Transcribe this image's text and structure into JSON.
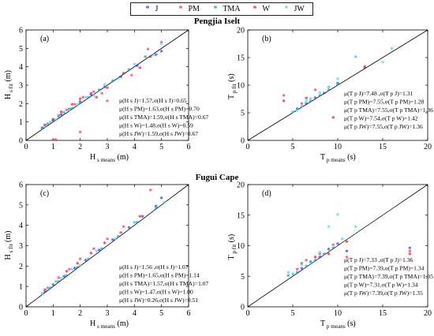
{
  "legend": {
    "items": [
      {
        "label": "J",
        "color": "#3b4fd8",
        "marker": "*"
      },
      {
        "label": "PM",
        "color": "#e8408a",
        "marker": "*"
      },
      {
        "label": "TMA",
        "color": "#1fa7a7",
        "marker": "*"
      },
      {
        "label": "W",
        "color": "#d6333a",
        "marker": "*"
      },
      {
        "label": "JW",
        "color": "#5fd3f0",
        "marker": "*"
      }
    ]
  },
  "section_titles": [
    "Pengjia Iselt",
    "Fugui Cape"
  ],
  "chart_data": [
    {
      "type": "scatter",
      "panel": "(a)",
      "xlabel": "H s means (m)",
      "ylabel": "H s fit (m)",
      "xlim": [
        0,
        6
      ],
      "ylim": [
        0,
        6
      ],
      "xticks": [
        0,
        1,
        2,
        3,
        4,
        5,
        6
      ],
      "yticks": [
        0,
        1,
        2,
        3,
        4,
        5,
        6
      ],
      "diagonal": true,
      "series": [
        {
          "name": "J",
          "x": [
            0.7,
            1.0,
            1.3,
            1.6,
            2.0,
            2.4,
            2.9,
            3.5,
            4.1,
            4.8,
            5.0
          ],
          "y": [
            0.75,
            1.05,
            1.35,
            1.65,
            2.05,
            2.45,
            2.85,
            3.4,
            4.0,
            4.6,
            4.8
          ]
        },
        {
          "name": "PM",
          "x": [
            0.6,
            0.9,
            1.2,
            1.5,
            1.8,
            2.1,
            2.5,
            2.8,
            3.0,
            3.9,
            4.5,
            5.0,
            1.0,
            1.1,
            2.0
          ],
          "y": [
            0.65,
            0.95,
            1.3,
            1.6,
            1.9,
            2.3,
            2.6,
            2.5,
            2.1,
            3.5,
            4.9,
            5.3,
            0.0,
            0.0,
            0.4
          ]
        },
        {
          "name": "TMA",
          "x": [
            0.6,
            0.8,
            1.0,
            1.2,
            1.4,
            1.7,
            2.0,
            2.3,
            2.7,
            3.2,
            3.8,
            4.4
          ],
          "y": [
            0.6,
            0.85,
            1.0,
            1.25,
            1.45,
            1.7,
            2.0,
            2.3,
            2.7,
            3.2,
            3.8,
            4.5
          ]
        },
        {
          "name": "W",
          "x": [
            0.7,
            1.0,
            1.3,
            1.7,
            2.0,
            2.4,
            2.6,
            3.0,
            3.6,
            4.2,
            4.6
          ],
          "y": [
            0.8,
            1.1,
            1.5,
            1.9,
            2.2,
            2.5,
            2.3,
            2.8,
            3.6,
            3.9,
            4.5
          ]
        },
        {
          "name": "JW",
          "x": [
            0.7,
            0.9,
            1.1,
            1.4,
            1.6,
            1.9,
            2.2,
            2.5,
            2.9,
            3.4,
            4.0,
            4.7,
            5.0
          ],
          "y": [
            0.7,
            0.95,
            1.1,
            1.5,
            1.6,
            1.9,
            2.3,
            2.4,
            3.0,
            3.3,
            4.1,
            4.6,
            5.2
          ]
        }
      ],
      "stats": [
        "μ(H s J)=1.57,σ(H s J)=0.65",
        "μ(H s PM)=1.63,σ(H s PM)=0.70",
        "μ(H s TMA)=1.59,σ(H s TMA)=0.67",
        "μ(H s W)=1.48,σ(H s W)=0.59",
        "μ(H s JW)=1.59,σ(H s JW)=0.67"
      ]
    },
    {
      "type": "scatter",
      "panel": "(b)",
      "xlabel": "T p means (s)",
      "ylabel": "T p fit (s)",
      "xlim": [
        0,
        20
      ],
      "ylim": [
        0,
        20
      ],
      "xticks": [
        0,
        5,
        10,
        15,
        20
      ],
      "yticks": [
        0,
        5,
        10,
        15,
        20
      ],
      "diagonal": true,
      "series": [
        {
          "name": "J",
          "x": [
            5.5,
            6.5,
            7.5,
            8.5,
            10,
            13
          ],
          "y": [
            5.6,
            6.5,
            7.6,
            8.4,
            10.2,
            13
          ]
        },
        {
          "name": "PM",
          "x": [
            4,
            6,
            7.5,
            9,
            12
          ],
          "y": [
            8,
            6.5,
            9,
            9.5,
            15
          ]
        },
        {
          "name": "TMA",
          "x": [
            5,
            6,
            7,
            8,
            9,
            10
          ],
          "y": [
            5,
            6,
            7,
            8,
            9,
            10
          ]
        },
        {
          "name": "W",
          "x": [
            4,
            6.5,
            9.5,
            13
          ],
          "y": [
            7,
            7.5,
            4,
            13.2
          ]
        },
        {
          "name": "JW",
          "x": [
            5,
            5.5,
            6,
            6.5,
            7,
            8,
            9,
            10,
            12,
            15,
            16
          ],
          "y": [
            5,
            5.3,
            6,
            7,
            7.4,
            8.5,
            9.5,
            11,
            15,
            14,
            16.5
          ]
        }
      ],
      "stats": [
        "μ(T p J)=7.48 ,σ(T p J)=1.31",
        "μ(T p PM)=7.55,σ(T p PM)=1.28",
        "μ(T p TMA)=7.55,σ(T p TMA)=1.36",
        "μ(T p W)=7.54,σ(T p W)=1.42",
        "μ(T p JW)=7.55,σ(T p JW)=1.36"
      ]
    },
    {
      "type": "scatter",
      "panel": "(c)",
      "xlabel": "H s means (m)",
      "ylabel": "H s fit (m)",
      "xlim": [
        0,
        6
      ],
      "ylim": [
        0,
        6
      ],
      "xticks": [
        0,
        1,
        2,
        3,
        4,
        5,
        6
      ],
      "yticks": [
        0,
        1,
        2,
        3,
        4,
        5,
        6
      ],
      "diagonal": true,
      "series": [
        {
          "name": "J",
          "x": [
            0.7,
            1.0,
            1.4,
            1.8,
            2.2,
            2.7,
            3.2,
            3.8,
            4.3,
            4.8,
            5.0
          ],
          "y": [
            0.7,
            1.05,
            1.45,
            1.85,
            2.25,
            2.75,
            3.25,
            3.85,
            4.4,
            4.9,
            5.3
          ]
        },
        {
          "name": "PM",
          "x": [
            0.8,
            1.2,
            1.6,
            2.0,
            2.5,
            3.0,
            3.6,
            4.0,
            4.6
          ],
          "y": [
            0.9,
            1.4,
            1.8,
            2.3,
            2.8,
            3.3,
            3.9,
            4.1,
            5.7
          ]
        },
        {
          "name": "TMA",
          "x": [
            0.6,
            0.9,
            1.2,
            1.5,
            1.9,
            2.3,
            2.8,
            3.4,
            4.1,
            4.8
          ],
          "y": [
            0.6,
            0.9,
            1.2,
            1.5,
            1.9,
            2.3,
            2.8,
            3.4,
            4.1,
            4.8
          ]
        },
        {
          "name": "W",
          "x": [
            0.7,
            1.1,
            1.5,
            1.9,
            2.4,
            2.9,
            3.5,
            4.2
          ],
          "y": [
            0.8,
            1.2,
            1.7,
            2.1,
            2.6,
            3.1,
            3.6,
            4.4
          ]
        },
        {
          "name": "JW",
          "x": [
            0.6,
            0.8,
            1.1,
            1.3,
            1.7,
            2.0,
            2.6,
            3.3,
            4.0,
            5.1
          ],
          "y": [
            0.6,
            0.85,
            1.2,
            1.35,
            1.8,
            2.0,
            2.7,
            3.3,
            4.1,
            5.1
          ]
        }
      ],
      "stats": [
        "μ(H s J)=1.56 ,σ(H s J)=1.07",
        "μ(H s PM)=1.65,σ(H s PM)=1.14",
        "μ(H s TMA)=1.57,σ(H s TMA)=1.07",
        "μ(H s W)=1.47,σ(H s W)=1.00",
        "μ(H s JW)=0.26,σ(H s JW)=0.51"
      ]
    },
    {
      "type": "scatter",
      "panel": "(d)",
      "xlabel": "T p means (s)",
      "ylabel": "T p fit (s)",
      "xlim": [
        0,
        20
      ],
      "ylim": [
        0,
        20
      ],
      "xticks": [
        0,
        5,
        10,
        15,
        20
      ],
      "yticks": [
        0,
        5,
        10,
        15,
        20
      ],
      "diagonal": true,
      "series": [
        {
          "name": "J",
          "x": [
            5,
            6,
            7,
            8,
            9,
            10,
            11,
            18
          ],
          "y": [
            5.2,
            6.1,
            7.2,
            8,
            9.3,
            10.2,
            9,
            9.5
          ]
        },
        {
          "name": "PM",
          "x": [
            5.5,
            6.5,
            8,
            9.5,
            11,
            18
          ],
          "y": [
            6,
            7.5,
            8.5,
            10,
            8,
            9
          ]
        },
        {
          "name": "TMA",
          "x": [
            4.5,
            5.5,
            6.5,
            7.5,
            8.5,
            9.5
          ],
          "y": [
            5,
            5.5,
            6.5,
            7.5,
            8.5,
            9.5
          ]
        },
        {
          "name": "W",
          "x": [
            6,
            7.5,
            9,
            11,
            18
          ],
          "y": [
            7,
            8,
            8.5,
            10.5,
            8.5
          ]
        },
        {
          "name": "JW",
          "x": [
            4.5,
            5,
            6,
            7,
            8,
            9,
            10,
            10.5,
            12
          ],
          "y": [
            5.5,
            5.2,
            6.8,
            7,
            8.8,
            13,
            15,
            11,
            13
          ]
        }
      ],
      "stats": [
        "μ(T p J)=7.33 ,σ(T p J)=1.36",
        "μ(T p PM)=7.39,σ(T p PM)=1.34",
        "μ(T p TMA)=7.39,σ(T p TMA)=1.35",
        "μ(T p W)=7.31,σ(T p W)=1.34",
        "μ(T p JW)=7.39,σ(T p JW)=1.35"
      ]
    }
  ]
}
